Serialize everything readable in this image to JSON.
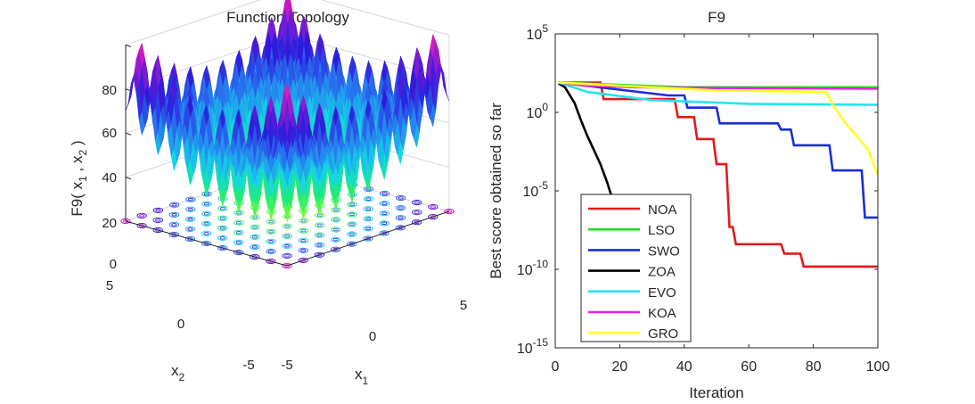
{
  "left_panel": {
    "title": "Function Topology",
    "xlabel_text": "x",
    "xlabel_sub": "1",
    "ylabel_text": "x",
    "ylabel_sub": "2",
    "zlabel": {
      "p1": "F9( x",
      "s1": "1",
      "p2": " , x",
      "s2": "2",
      "p3": " )"
    },
    "z_ticks": [
      "0",
      "20",
      "40",
      "60",
      "80"
    ],
    "x1_ticks": [
      "-5",
      "0",
      "5"
    ],
    "x2_ticks": [
      "-5",
      "0",
      "5"
    ]
  },
  "chart_data": {
    "type": "line",
    "title": "F9",
    "xlabel": "Iteration",
    "ylabel": "Best score obtained so far",
    "xlim": [
      0,
      100
    ],
    "ylim": [
      1e-15,
      100000.0
    ],
    "yscale": "log",
    "x_ticks": [
      "0",
      "20",
      "40",
      "60",
      "80",
      "100"
    ],
    "y_ticks": [
      {
        "base": "10",
        "exp": "5",
        "value": 100000.0
      },
      {
        "base": "10",
        "exp": "0",
        "value": 1
      },
      {
        "base": "10",
        "exp": "-5",
        "value": 1e-05
      },
      {
        "base": "10",
        "exp": "-10",
        "value": 1e-10
      },
      {
        "base": "10",
        "exp": "-15",
        "value": 1e-15
      }
    ],
    "legend_position": "bottom-left",
    "series": [
      {
        "name": "NOA",
        "color": "#e41a1c",
        "points": [
          [
            1,
            80
          ],
          [
            14,
            80
          ],
          [
            15,
            7
          ],
          [
            37,
            7
          ],
          [
            38,
            0.5
          ],
          [
            43,
            0.5
          ],
          [
            44,
            0.02
          ],
          [
            49,
            0.02
          ],
          [
            50,
            0.0005
          ],
          [
            53,
            0.0005
          ],
          [
            54,
            5e-08
          ],
          [
            55,
            5e-08
          ],
          [
            56,
            4e-09
          ],
          [
            70,
            4e-09
          ],
          [
            71,
            1e-09
          ],
          [
            76,
            1e-09
          ],
          [
            77,
            1.5e-10
          ],
          [
            100,
            1.5e-10
          ]
        ]
      },
      {
        "name": "LSO",
        "color": "#22dd22",
        "points": [
          [
            1,
            80
          ],
          [
            40,
            40
          ],
          [
            100,
            40
          ]
        ]
      },
      {
        "name": "SWO",
        "color": "#1a2fd6",
        "points": [
          [
            1,
            80
          ],
          [
            35,
            12
          ],
          [
            40,
            12
          ],
          [
            41,
            2
          ],
          [
            50,
            2
          ],
          [
            51,
            0.2
          ],
          [
            69,
            0.2
          ],
          [
            70,
            0.08
          ],
          [
            73,
            0.08
          ],
          [
            74,
            0.008
          ],
          [
            85,
            0.008
          ],
          [
            86,
            0.0002
          ],
          [
            95,
            0.0002
          ],
          [
            96,
            2e-07
          ],
          [
            100,
            2e-07
          ]
        ]
      },
      {
        "name": "ZOA",
        "color": "#000000",
        "points": [
          [
            1,
            70
          ],
          [
            3,
            40
          ],
          [
            6,
            4
          ],
          [
            8,
            0.3
          ],
          [
            10,
            0.03
          ],
          [
            12,
            0.004
          ],
          [
            14,
            0.0005
          ],
          [
            16,
            4e-05
          ],
          [
            18,
            2e-06
          ],
          [
            20,
            1e-07
          ],
          [
            21,
            6e-09
          ]
        ]
      },
      {
        "name": "EVO",
        "color": "#22e5f0",
        "points": [
          [
            1,
            80
          ],
          [
            10,
            20
          ],
          [
            30,
            6
          ],
          [
            60,
            3.5
          ],
          [
            100,
            3
          ]
        ]
      },
      {
        "name": "KOA",
        "color": "#e823e0",
        "points": [
          [
            1,
            80
          ],
          [
            10,
            50
          ],
          [
            25,
            40
          ],
          [
            50,
            35
          ],
          [
            100,
            32
          ]
        ]
      },
      {
        "name": "GRO",
        "color": "#ffff22",
        "points": [
          [
            1,
            80
          ],
          [
            20,
            50
          ],
          [
            50,
            25
          ],
          [
            84,
            20
          ],
          [
            86,
            3
          ],
          [
            90,
            0.2
          ],
          [
            93,
            0.04
          ],
          [
            97,
            0.004
          ],
          [
            100,
            0.0001
          ]
        ]
      }
    ]
  }
}
